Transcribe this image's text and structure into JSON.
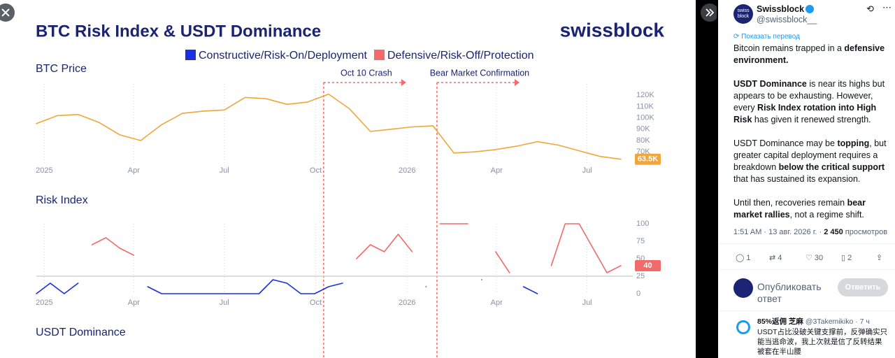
{
  "header": {
    "title": "BTC Risk Index & USDT Dominance",
    "brand": "swissblock"
  },
  "chart_data": [
    {
      "type": "line",
      "title": "BTC Price",
      "x": [
        -8,
        13,
        34,
        55,
        76,
        97,
        118,
        139,
        160,
        181,
        202,
        223,
        244,
        265,
        286,
        307,
        328,
        349,
        370,
        391,
        412,
        433,
        454,
        475,
        496,
        517,
        538,
        559,
        580
      ],
      "series": [
        {
          "color": "#f0a63a",
          "values": [
            95,
            102,
            103,
            96,
            85,
            80,
            94,
            104,
            106,
            107,
            118,
            117,
            112,
            114,
            121,
            108,
            88,
            90,
            92,
            93,
            69,
            70,
            72,
            75,
            79,
            76,
            71,
            66,
            63.5
          ],
          "value_labels": [
            null,
            null,
            null,
            null,
            null,
            null,
            null,
            null,
            null,
            null,
            null,
            null,
            null,
            null,
            null,
            null,
            null,
            null,
            null,
            null,
            null,
            null,
            null,
            null,
            null,
            null,
            null,
            null,
            "63.5K"
          ]
        }
      ],
      "xlim": [
        -8,
        592
      ],
      "ylim": [
        59,
        130
      ],
      "xticks": [
        {
          "value": 0,
          "label": "2025"
        },
        {
          "value": 90,
          "label": "Apr"
        },
        {
          "value": 181,
          "label": "Jul"
        },
        {
          "value": 273,
          "label": "Oct"
        },
        {
          "value": 365,
          "label": "2026"
        },
        {
          "value": 455,
          "label": "Apr"
        },
        {
          "value": 546,
          "label": "Jul"
        }
      ],
      "yticks": [
        {
          "value": 120,
          "label": "120K"
        },
        {
          "value": 110,
          "label": "110K"
        },
        {
          "value": 100,
          "label": "100K"
        },
        {
          "value": 90,
          "label": "90K"
        },
        {
          "value": 80,
          "label": "80K"
        },
        {
          "value": 70,
          "label": "70K"
        }
      ],
      "grid": true,
      "annotations": [
        {
          "text": "Oct 10 Crash",
          "x": 281
        },
        {
          "text": "Bear Market Confirmation",
          "x": 395
        }
      ]
    },
    {
      "type": "line",
      "title": "Risk Index",
      "x": [
        -8,
        6,
        20,
        34,
        48,
        62,
        76,
        90,
        104,
        118,
        132,
        146,
        160,
        174,
        188,
        202,
        216,
        230,
        244,
        258,
        272,
        286,
        300,
        314,
        328,
        342,
        356,
        370,
        384,
        398,
        412,
        426,
        440,
        454,
        468,
        482,
        496,
        510,
        524,
        538,
        552,
        566,
        580
      ],
      "series": [
        {
          "name": "Constructive/Risk-On/Deployment",
          "color": "#1a2fe0",
          "values": [
            0,
            15,
            0,
            15,
            null,
            null,
            null,
            null,
            10,
            0,
            0,
            0,
            0,
            0,
            0,
            0,
            0,
            20,
            15,
            0,
            0,
            10,
            15,
            null,
            null,
            null,
            null,
            null,
            10,
            null,
            null,
            null,
            20,
            null,
            null,
            10,
            0,
            null,
            null,
            null,
            null,
            null,
            null
          ]
        },
        {
          "name": "Defensive/Risk-Off/Protection",
          "color": "#f26a6a",
          "label_last": true,
          "values": [
            null,
            null,
            null,
            null,
            70,
            80,
            65,
            55,
            null,
            null,
            null,
            null,
            null,
            null,
            null,
            null,
            null,
            null,
            null,
            null,
            null,
            null,
            null,
            50,
            70,
            60,
            85,
            60,
            null,
            100,
            100,
            100,
            null,
            60,
            30,
            null,
            null,
            40,
            100,
            100,
            65,
            30,
            40
          ]
        }
      ],
      "xlim": [
        -8,
        592
      ],
      "ylim": [
        0,
        100
      ],
      "xticks": [
        {
          "value": 0,
          "label": "2025"
        },
        {
          "value": 90,
          "label": "Apr"
        },
        {
          "value": 181,
          "label": "Jul"
        },
        {
          "value": 273,
          "label": "Oct"
        },
        {
          "value": 365,
          "label": "2026"
        },
        {
          "value": 455,
          "label": "Apr"
        },
        {
          "value": 546,
          "label": "Jul"
        }
      ],
      "yticks": [
        100,
        75,
        50,
        25,
        0
      ],
      "reference_line": 25,
      "grid": true
    },
    {
      "type": "line",
      "title": "USDT Dominance"
    }
  ],
  "post": {
    "author": "Swissblock",
    "handle": "@swissblock__",
    "avatar": "swiss block",
    "translate": "Показать перевод",
    "paragraphs": [
      [
        {
          "text": "Bitcoin remains trapped in a ",
          "bold": false
        },
        {
          "text": "defensive environment.",
          "bold": true
        }
      ],
      [
        {
          "text": "USDT Dominance",
          "bold": true
        },
        {
          "text": " is near its highs but appears to be exhausting. However, every ",
          "bold": false
        },
        {
          "text": "Risk Index rotation into High Risk",
          "bold": true
        },
        {
          "text": " has given it renewed strength.",
          "bold": false
        }
      ],
      [
        {
          "text": "USDT Dominance may be ",
          "bold": false
        },
        {
          "text": "topping",
          "bold": true
        },
        {
          "text": ", but greater capital deployment requires a breakdown ",
          "bold": false
        },
        {
          "text": "below the critical support",
          "bold": true
        },
        {
          "text": " that has sustained its expansion.",
          "bold": false
        }
      ],
      [
        {
          "text": "Until then, recoveries remain ",
          "bold": false
        },
        {
          "text": "bear market rallies",
          "bold": true
        },
        {
          "text": ", not a regime shift.",
          "bold": false
        }
      ]
    ],
    "time": "1:51 AM · 13 авг. 2026 г. · ",
    "views": "2 450",
    "views_label": " просмотров",
    "replies": "1",
    "reposts": "4",
    "likes": "30",
    "bookmarks": "2",
    "compose_placeholder": "Опубликовать ответ",
    "reply_button": "Ответить",
    "reply": {
      "author": "85%返佣 芝麻",
      "meta": "@3Takemikiko · 7 ч",
      "text": "USDT占比没破关键支撑前，反弹确实只能当逃命波，我上次就是信了反转结果被套在半山腰"
    }
  }
}
